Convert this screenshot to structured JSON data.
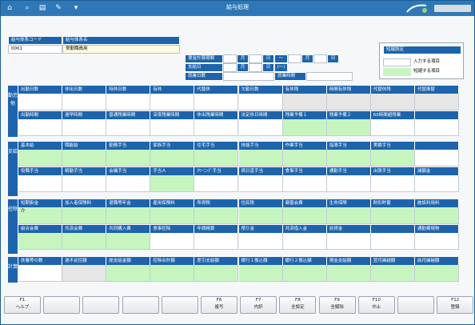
{
  "window": {
    "title": "給与処理"
  },
  "colors": {
    "accent": "#1d64ad",
    "highlight": "#c6f5c0"
  },
  "toolbar": {
    "icons": [
      "home-icon",
      "search-icon",
      "print-icon",
      "tools-icon",
      "dropdown-icon"
    ]
  },
  "system": {
    "code_label": "給与体系コード",
    "name_label": "給与体系名",
    "code_value": "0001",
    "name_value": "常勤職員用"
  },
  "period": {
    "calc_label": "賃金計算期間",
    "pay_label": "支給日",
    "work_days_label": "就業日数",
    "work_hours_label": "就業時間",
    "month": "月",
    "day": "日",
    "tilde": "〜",
    "tilde_paren": "(〜)"
  },
  "legend": {
    "title": "短縮設定",
    "input_label": "入力する項目",
    "short_label": "短縮する項目"
  },
  "attendance": {
    "section": "勤怠他",
    "row1": [
      "出勤日数",
      "休出日数",
      "特休日数",
      "有休",
      "代替休",
      "欠勤日数",
      "有休残",
      "時間有休残",
      "代替休残",
      "代替振替"
    ],
    "row2": [
      "出勤時間",
      "遅早時間",
      "普通残業時間",
      "深夜残業時間",
      "休出残業時間",
      "法定休日時間",
      "残業予備１",
      "残業予備２",
      "60時間超残業",
      ""
    ]
  },
  "payment": {
    "section": "支給",
    "row1": [
      "基本給",
      "職能給",
      "勤務手当",
      "家族手当",
      "住宅手当",
      "技能手当",
      "作業手当",
      "指導手当",
      "実績手当",
      ""
    ],
    "row2": [
      "役職手当",
      "精勤手当",
      "会議手当",
      "手当Ａ",
      "ｸﾘｰﾆﾝｸﾞ手当",
      "宿日直手当",
      "食事手当",
      "通勤手当",
      "出張手当",
      "減額金"
    ]
  },
  "deduction": {
    "section": "控除",
    "row1": [
      "短期掛金",
      "加入者保険料",
      "退職等年金",
      "雇用保険料",
      "所得税",
      "住民税",
      "親善会費",
      "生命保険",
      "財形貯蓄",
      "施設利用料"
    ],
    "row1_val": "介",
    "row2": [
      "組合会費",
      "共済会費",
      "共同購入費",
      "食事控除",
      "年調精算",
      "預り金",
      "共済借入金",
      "前貸金",
      "",
      "通勤費現物"
    ]
  },
  "calc": {
    "section": "計算",
    "row1": [
      "扶養等の数",
      "過不足控額",
      "総支給金額",
      "控除合計額",
      "差引支給額",
      "銀行１振込額",
      "銀行２振込額",
      "現金支給額",
      "翌月繰越額",
      "前月繰越額"
    ]
  },
  "fkeys": [
    {
      "n": "F1",
      "t": "ヘルプ"
    },
    {
      "n": "",
      "t": ""
    },
    {
      "n": "",
      "t": ""
    },
    {
      "n": "",
      "t": ""
    },
    {
      "n": "",
      "t": ""
    },
    {
      "n": "F6",
      "t": "複写"
    },
    {
      "n": "F7",
      "t": "内訳"
    },
    {
      "n": "F8",
      "t": "全設定"
    },
    {
      "n": "F9",
      "t": "全解除"
    },
    {
      "n": "F10",
      "t": "中止"
    },
    {
      "n": "",
      "t": ""
    },
    {
      "n": "F12",
      "t": "登録"
    }
  ]
}
